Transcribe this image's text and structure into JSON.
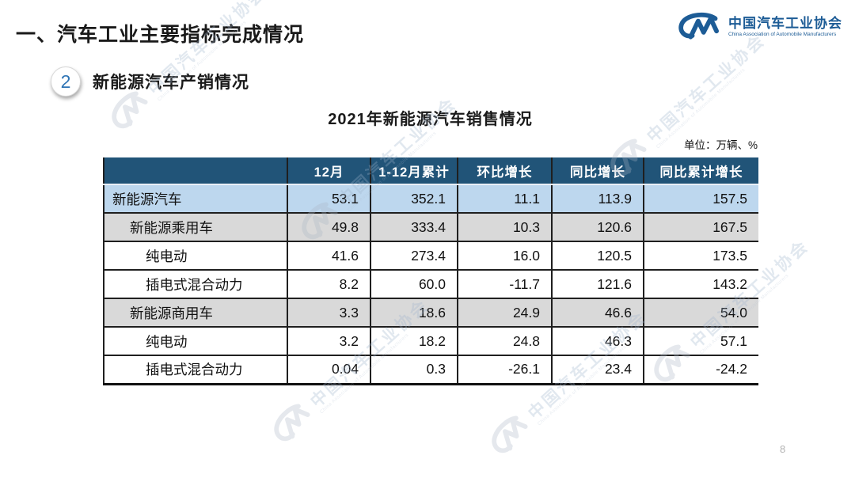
{
  "page": {
    "title": "一、汽车工业主要指标完成情况",
    "page_number": "8"
  },
  "logo": {
    "monogram": "CM",
    "name_cn": "中国汽车工业协会",
    "name_en": "China Association of Automobile Manufacturers"
  },
  "section": {
    "badge": "2",
    "label": "新能源汽车产销情况"
  },
  "table": {
    "title": "2021年新能源汽车销售情况",
    "unit": "单位：万辆、%",
    "columns": [
      "",
      "12月",
      "1-12月累计",
      "环比增长",
      "同比增长",
      "同比累计增长"
    ],
    "rows": [
      {
        "label": "新能源汽车",
        "indent": 0,
        "style": "blue",
        "values": [
          "53.1",
          "352.1",
          "11.1",
          "113.9",
          "157.5"
        ]
      },
      {
        "label": "新能源乘用车",
        "indent": 1,
        "style": "gray",
        "values": [
          "49.8",
          "333.4",
          "10.3",
          "120.6",
          "167.5"
        ]
      },
      {
        "label": "纯电动",
        "indent": 2,
        "style": "white",
        "values": [
          "41.6",
          "273.4",
          "16.0",
          "120.5",
          "173.5"
        ]
      },
      {
        "label": "插电式混合动力",
        "indent": 2,
        "style": "white",
        "values": [
          "8.2",
          "60.0",
          "-11.7",
          "121.6",
          "143.2"
        ]
      },
      {
        "label": "新能源商用车",
        "indent": 1,
        "style": "gray",
        "values": [
          "3.3",
          "18.6",
          "24.9",
          "46.6",
          "54.0"
        ]
      },
      {
        "label": "纯电动",
        "indent": 2,
        "style": "white",
        "values": [
          "3.2",
          "18.2",
          "24.8",
          "46.3",
          "57.1"
        ]
      },
      {
        "label": "插电式混合动力",
        "indent": 2,
        "style": "white",
        "values": [
          "0.04",
          "0.3",
          "-26.1",
          "23.4",
          "-24.2"
        ]
      }
    ],
    "colors": {
      "header_bg": "#215478",
      "row_blue": "#BDD7EE",
      "row_gray": "#D9D9D9",
      "row_white": "#FFFFFF"
    }
  },
  "brand": {
    "blue": "#1D5C96",
    "badge_blue": "#2E74B5"
  },
  "watermark": {
    "text": "中国汽车工业协会",
    "subtext": "China Association of Automobile Manufacturers"
  }
}
